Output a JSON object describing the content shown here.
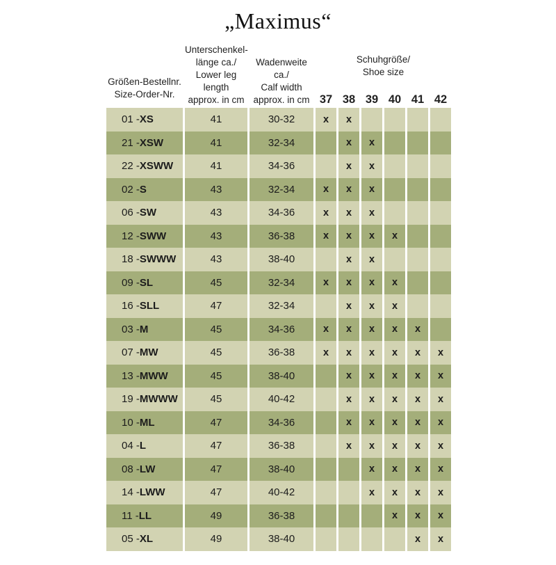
{
  "title": "„Maximus“",
  "table": {
    "mark": "x",
    "columns": {
      "order": {
        "lines": [
          "Größen-Bestellnr.",
          "Size-Order-Nr."
        ]
      },
      "leg_length": {
        "lines": [
          "Unterschenkel-",
          "länge ca./",
          "Lower leg length",
          "approx. in cm"
        ]
      },
      "calf_width": {
        "lines": [
          "Wadenweite ca./",
          "Calf width",
          "approx. in cm"
        ]
      },
      "shoe_size": {
        "lines": [
          "Schuhgröße/",
          "Shoe size"
        ],
        "sizes": [
          "37",
          "38",
          "39",
          "40",
          "41",
          "42"
        ]
      }
    },
    "rows": [
      {
        "order_nr": "01",
        "size": "XS",
        "leg_length": "41",
        "calf_width": "30-32",
        "shoe_sizes": [
          "37",
          "38"
        ]
      },
      {
        "order_nr": "21",
        "size": "XSW",
        "leg_length": "41",
        "calf_width": "32-34",
        "shoe_sizes": [
          "38",
          "39"
        ]
      },
      {
        "order_nr": "22",
        "size": "XSWW",
        "leg_length": "41",
        "calf_width": "34-36",
        "shoe_sizes": [
          "38",
          "39"
        ]
      },
      {
        "order_nr": "02",
        "size": "S",
        "leg_length": "43",
        "calf_width": "32-34",
        "shoe_sizes": [
          "37",
          "38",
          "39"
        ]
      },
      {
        "order_nr": "06",
        "size": "SW",
        "leg_length": "43",
        "calf_width": "34-36",
        "shoe_sizes": [
          "37",
          "38",
          "39"
        ]
      },
      {
        "order_nr": "12",
        "size": "SWW",
        "leg_length": "43",
        "calf_width": "36-38",
        "shoe_sizes": [
          "37",
          "38",
          "39",
          "40"
        ]
      },
      {
        "order_nr": "18",
        "size": "SWWW",
        "leg_length": "43",
        "calf_width": "38-40",
        "shoe_sizes": [
          "38",
          "39"
        ]
      },
      {
        "order_nr": "09",
        "size": "SL",
        "leg_length": "45",
        "calf_width": "32-34",
        "shoe_sizes": [
          "37",
          "38",
          "39",
          "40"
        ]
      },
      {
        "order_nr": "16",
        "size": "SLL",
        "leg_length": "47",
        "calf_width": "32-34",
        "shoe_sizes": [
          "38",
          "39",
          "40"
        ]
      },
      {
        "order_nr": "03",
        "size": "M",
        "leg_length": "45",
        "calf_width": "34-36",
        "shoe_sizes": [
          "37",
          "38",
          "39",
          "40",
          "41"
        ]
      },
      {
        "order_nr": "07",
        "size": "MW",
        "leg_length": "45",
        "calf_width": "36-38",
        "shoe_sizes": [
          "37",
          "38",
          "39",
          "40",
          "41",
          "42"
        ]
      },
      {
        "order_nr": "13",
        "size": "MWW",
        "leg_length": "45",
        "calf_width": "38-40",
        "shoe_sizes": [
          "38",
          "39",
          "40",
          "41",
          "42"
        ]
      },
      {
        "order_nr": "19",
        "size": "MWWW",
        "leg_length": "45",
        "calf_width": "40-42",
        "shoe_sizes": [
          "38",
          "39",
          "40",
          "41",
          "42"
        ]
      },
      {
        "order_nr": "10",
        "size": "ML",
        "leg_length": "47",
        "calf_width": "34-36",
        "shoe_sizes": [
          "38",
          "39",
          "40",
          "41",
          "42"
        ]
      },
      {
        "order_nr": "04",
        "size": "L",
        "leg_length": "47",
        "calf_width": "36-38",
        "shoe_sizes": [
          "38",
          "39",
          "40",
          "41",
          "42"
        ]
      },
      {
        "order_nr": "08",
        "size": "LW",
        "leg_length": "47",
        "calf_width": "38-40",
        "shoe_sizes": [
          "39",
          "40",
          "41",
          "42"
        ]
      },
      {
        "order_nr": "14",
        "size": "LWW",
        "leg_length": "47",
        "calf_width": "40-42",
        "shoe_sizes": [
          "39",
          "40",
          "41",
          "42"
        ]
      },
      {
        "order_nr": "11",
        "size": "LL",
        "leg_length": "49",
        "calf_width": "36-38",
        "shoe_sizes": [
          "40",
          "41",
          "42"
        ]
      },
      {
        "order_nr": "05",
        "size": "XL",
        "leg_length": "49",
        "calf_width": "38-40",
        "shoe_sizes": [
          "41",
          "42"
        ]
      }
    ]
  },
  "colors": {
    "row_light": "#d2d3b2",
    "row_dark": "#a4ae7a",
    "text": "#1c1c1c",
    "background": "#ffffff"
  }
}
